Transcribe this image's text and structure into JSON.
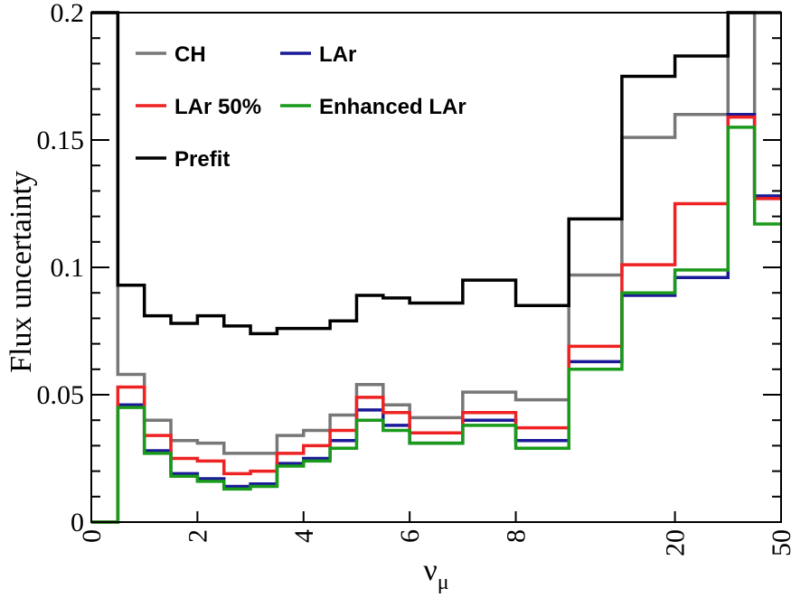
{
  "chart_data": {
    "type": "line",
    "step": true,
    "xlabel": "ν",
    "xlabel_sub": "μ",
    "ylabel": "Flux uncertainty",
    "ylim": [
      0,
      0.2
    ],
    "y_ticks": [
      0,
      0.05,
      0.1,
      0.15,
      0.2
    ],
    "y_tick_labels": [
      "0",
      "0.05",
      "0.1",
      "0.15",
      "0.2"
    ],
    "x_tick_labels": [
      "0",
      "2",
      "4",
      "6",
      "8",
      "20",
      "50"
    ],
    "x_tick_bins": [
      0,
      4,
      8,
      12,
      16,
      22,
      26
    ],
    "n_bins": 26,
    "legend_position": "top-left",
    "grid": false,
    "series": [
      {
        "name": "CH",
        "color": "#777777",
        "values": [
          0.2,
          0.058,
          0.04,
          0.032,
          0.031,
          0.027,
          0.027,
          0.034,
          0.036,
          0.042,
          0.054,
          0.046,
          0.041,
          0.041,
          0.051,
          0.051,
          0.048,
          0.048,
          0.097,
          0.097,
          0.151,
          0.151,
          0.16,
          0.16,
          0.2,
          0.128
        ]
      },
      {
        "name": "LAr",
        "color": "#1a1a99",
        "values": [
          0.0,
          0.046,
          0.028,
          0.019,
          0.017,
          0.014,
          0.015,
          0.023,
          0.025,
          0.032,
          0.044,
          0.038,
          0.031,
          0.031,
          0.04,
          0.04,
          0.032,
          0.032,
          0.063,
          0.063,
          0.089,
          0.089,
          0.096,
          0.096,
          0.16,
          0.128
        ]
      },
      {
        "name": "LAr 50%",
        "color": "#ee2222",
        "values": [
          0.0,
          0.053,
          0.034,
          0.025,
          0.024,
          0.019,
          0.02,
          0.027,
          0.03,
          0.036,
          0.049,
          0.043,
          0.035,
          0.035,
          0.043,
          0.043,
          0.037,
          0.037,
          0.069,
          0.069,
          0.101,
          0.101,
          0.125,
          0.125,
          0.159,
          0.127
        ]
      },
      {
        "name": "Enhanced LAr",
        "color": "#1a9a1a",
        "values": [
          0.0,
          0.045,
          0.027,
          0.018,
          0.016,
          0.013,
          0.014,
          0.022,
          0.024,
          0.029,
          0.04,
          0.036,
          0.031,
          0.031,
          0.038,
          0.038,
          0.029,
          0.029,
          0.06,
          0.06,
          0.09,
          0.09,
          0.099,
          0.099,
          0.155,
          0.117
        ]
      },
      {
        "name": "Prefit",
        "color": "#000000",
        "values": [
          0.2,
          0.093,
          0.081,
          0.078,
          0.081,
          0.077,
          0.074,
          0.076,
          0.076,
          0.079,
          0.089,
          0.088,
          0.086,
          0.086,
          0.095,
          0.095,
          0.085,
          0.085,
          0.119,
          0.119,
          0.175,
          0.175,
          0.183,
          0.183,
          0.2,
          0.2
        ]
      }
    ]
  }
}
